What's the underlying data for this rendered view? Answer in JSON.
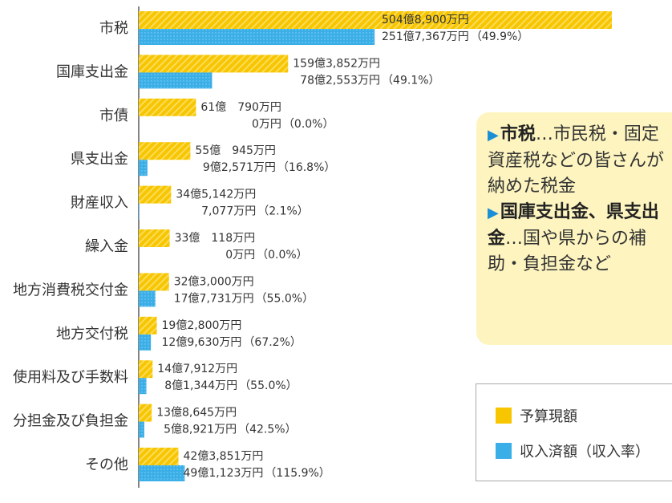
{
  "chart_data": {
    "type": "bar",
    "orientation": "horizontal",
    "categories": [
      "市税",
      "国庫支出金",
      "市債",
      "県支出金",
      "財産収入",
      "繰入金",
      "地方消費税交付金",
      "地方交付税",
      "使用料及び手数料",
      "分担金及び負担金",
      "その他"
    ],
    "series": [
      {
        "name": "予算現額",
        "color": "#f7c600",
        "values": [
          5048900,
          1593852,
          610790,
          550945,
          345142,
          330118,
          323000,
          192800,
          147912,
          138645,
          423851
        ],
        "value_labels": [
          "504億8,900万円",
          "159億3,852万円",
          "61億　790万円",
          "55億　945万円",
          "34億5,142万円",
          "33億　118万円",
          "32億3,000万円",
          "19億2,800万円",
          "14億7,912万円",
          "13億8,645万円",
          "42億3,851万円"
        ]
      },
      {
        "name": "収入済額（収入率）",
        "color": "#3aaee6",
        "values": [
          2517367,
          782553,
          0,
          92571,
          7077,
          0,
          177731,
          129630,
          81344,
          58921,
          491123
        ],
        "value_labels": [
          "251億7,367万円",
          "78億2,553万円",
          "0万円",
          "9億2,571万円",
          "7,077万円",
          "0万円",
          "17億7,731万円",
          "12億9,630万円",
          "8億1,344万円",
          "5億8,921万円",
          "49億1,123万円"
        ],
        "rates": [
          49.9,
          49.1,
          0.0,
          16.8,
          2.1,
          0.0,
          55.0,
          67.2,
          55.0,
          42.5,
          115.9
        ],
        "rate_labels": [
          "（49.9%）",
          "（49.1%）",
          "（0.0%）",
          "（16.8%）",
          "（2.1%）",
          "（0.0%）",
          "（55.0%）",
          "（67.2%）",
          "（55.0%）",
          "（42.5%）",
          "（115.9%）"
        ]
      }
    ]
  },
  "notes": [
    {
      "marker": "▶",
      "term": "市税",
      "text": "…市民税・固定資産税などの皆さんが納めた税金"
    },
    {
      "marker": "▶",
      "term": "国庫支出金、県支出金",
      "text": "…国や県からの補助・負担金など"
    }
  ]
}
